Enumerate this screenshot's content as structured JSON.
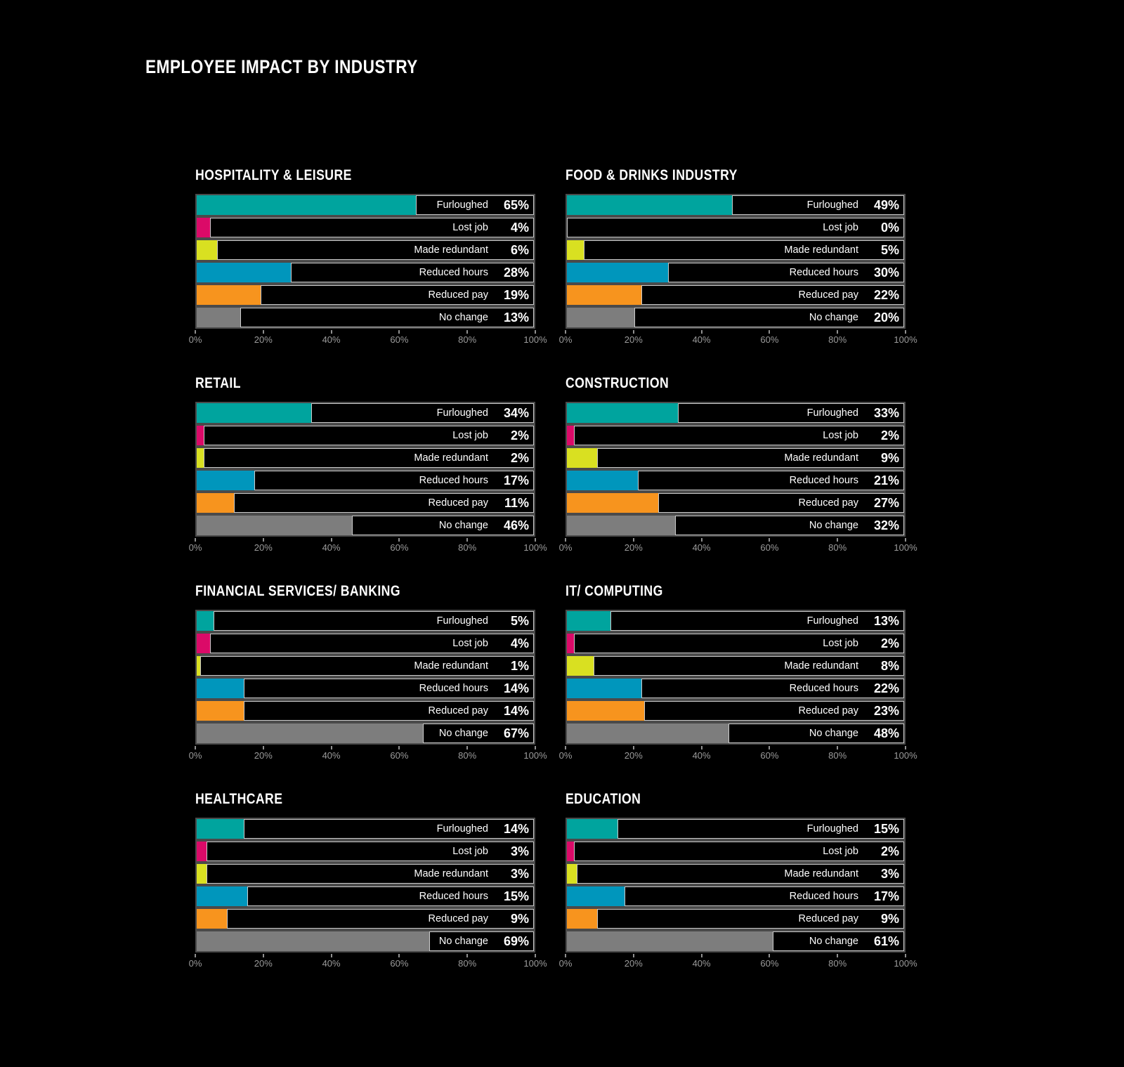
{
  "page_title": "EMPLOYEE IMPACT BY INDUSTRY",
  "chart_data": {
    "type": "bar",
    "orientation": "horizontal",
    "title": "EMPLOYEE IMPACT BY INDUSTRY",
    "categories": [
      "Furloughed",
      "Lost job",
      "Made redundant",
      "Reduced hours",
      "Reduced pay",
      "No change"
    ],
    "bar_colors": [
      "#00A49E",
      "#DB0A68",
      "#D9E021",
      "#0096BC",
      "#F7941E",
      "#7D7D7D"
    ],
    "xlim": [
      0,
      100
    ],
    "x_ticks": [
      "0%",
      "20%",
      "40%",
      "60%",
      "80%",
      "100%"
    ],
    "x_tick_positions": [
      0,
      20,
      40,
      60,
      80,
      100
    ],
    "grid": false,
    "legend_position": "none",
    "value_suffix": "%",
    "panels": [
      {
        "title": "HOSPITALITY & LEISURE",
        "values": [
          65,
          4,
          6,
          28,
          19,
          13
        ]
      },
      {
        "title": "FOOD & DRINKS INDUSTRY",
        "values": [
          49,
          0,
          5,
          30,
          22,
          20
        ]
      },
      {
        "title": "RETAIL",
        "values": [
          34,
          2,
          2,
          17,
          11,
          46
        ]
      },
      {
        "title": "CONSTRUCTION",
        "values": [
          33,
          2,
          9,
          21,
          27,
          32
        ]
      },
      {
        "title": "FINANCIAL SERVICES/ BANKING",
        "values": [
          5,
          4,
          1,
          14,
          14,
          67
        ]
      },
      {
        "title": "IT/ COMPUTING",
        "values": [
          13,
          2,
          8,
          22,
          23,
          48
        ]
      },
      {
        "title": "HEALTHCARE",
        "values": [
          14,
          3,
          3,
          15,
          9,
          69
        ]
      },
      {
        "title": "EDUCATION",
        "values": [
          15,
          2,
          3,
          17,
          9,
          61
        ]
      }
    ]
  }
}
